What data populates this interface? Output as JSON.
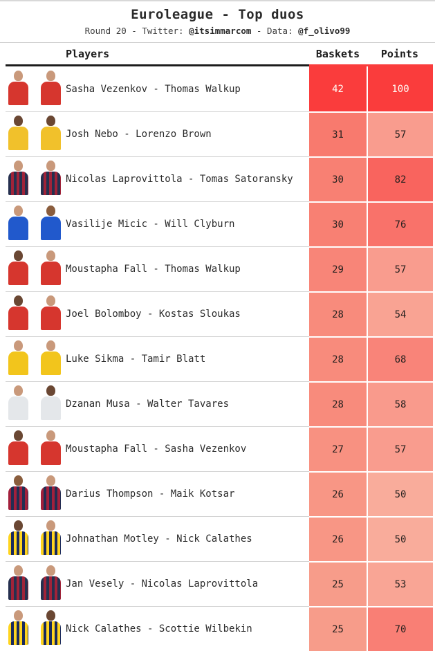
{
  "theme": {
    "accent_red": "#FA3C3C",
    "divider_gray": "#d4d4d4",
    "header_border_black": "#1c1c1c",
    "background": "#ffffff"
  },
  "header": {
    "title": "Euroleague - Top duos",
    "subtitle_prefix": "Round 20 - Twitter: ",
    "twitter_handle": "@itsimmarcom",
    "subtitle_separator": " - Data: ",
    "data_handle": "@f_olivo99"
  },
  "table": {
    "columns": [
      "Players",
      "Baskets",
      "Points"
    ],
    "rows": [
      {
        "players": "Sasha Vezenkov - Thomas Walkup",
        "baskets": 42,
        "points": 100,
        "baskets_color": "#FA3C3C",
        "points_color": "#FA3C3C",
        "value_text_color": "#FFFDF7",
        "avatars": [
          {
            "skin": "#C9997B",
            "jersey": "#D6362E"
          },
          {
            "skin": "#C9997B",
            "jersey": "#D6362E"
          }
        ]
      },
      {
        "players": "Josh Nebo - Lorenzo Brown",
        "baskets": 31,
        "points": 57,
        "baskets_color": "#F87A6E",
        "points_color": "#F99C8E",
        "value_text_color": "#26211F",
        "avatars": [
          {
            "skin": "#6A4733",
            "jersey": "#F1C12B"
          },
          {
            "skin": "#6A4733",
            "jersey": "#F1C12B"
          }
        ]
      },
      {
        "players": "Nicolas Laprovittola - Tomas Satoransky",
        "baskets": 30,
        "points": 82,
        "baskets_color": "#F88073",
        "points_color": "#F9645E",
        "value_text_color": "#26211F",
        "avatars": [
          {
            "skin": "#C9997B",
            "jersey": "#25304F",
            "jersey2": "#A02339"
          },
          {
            "skin": "#C9997B",
            "jersey": "#25304F",
            "jersey2": "#A02339"
          }
        ]
      },
      {
        "players": "Vasilije Micic - Will Clyburn",
        "baskets": 30,
        "points": 76,
        "baskets_color": "#F88073",
        "points_color": "#F9726A",
        "value_text_color": "#26211F",
        "avatars": [
          {
            "skin": "#C9997B",
            "jersey": "#2159CC"
          },
          {
            "skin": "#8A5D3D",
            "jersey": "#2159CC"
          }
        ]
      },
      {
        "players": "Moustapha Fall - Thomas Walkup",
        "baskets": 29,
        "points": 57,
        "baskets_color": "#F88578",
        "points_color": "#F99C8E",
        "value_text_color": "#26211F",
        "avatars": [
          {
            "skin": "#6A4733",
            "jersey": "#D6362E"
          },
          {
            "skin": "#C9997B",
            "jersey": "#D6362E"
          }
        ]
      },
      {
        "players": "Joel Bolomboy - Kostas Sloukas",
        "baskets": 28,
        "points": 54,
        "baskets_color": "#F88B7C",
        "points_color": "#F9A393",
        "value_text_color": "#26211F",
        "avatars": [
          {
            "skin": "#6A4733",
            "jersey": "#D6362E"
          },
          {
            "skin": "#C9997B",
            "jersey": "#D6362E"
          }
        ]
      },
      {
        "players": "Luke Sikma - Tamir Blatt",
        "baskets": 28,
        "points": 68,
        "baskets_color": "#F88B7C",
        "points_color": "#F98479",
        "value_text_color": "#26211F",
        "avatars": [
          {
            "skin": "#C9997B",
            "jersey": "#F2C51C"
          },
          {
            "skin": "#C9997B",
            "jersey": "#F2C51C"
          }
        ]
      },
      {
        "players": "Dzanan Musa - Walter Tavares",
        "baskets": 28,
        "points": 58,
        "baskets_color": "#F88B7C",
        "points_color": "#F99A8C",
        "value_text_color": "#26211F",
        "avatars": [
          {
            "skin": "#C9997B",
            "jersey": "#E4E7EA"
          },
          {
            "skin": "#6A4733",
            "jersey": "#E4E7EA"
          }
        ]
      },
      {
        "players": "Moustapha Fall - Sasha Vezenkov",
        "baskets": 27,
        "points": 57,
        "baskets_color": "#F89181",
        "points_color": "#F99C8E",
        "value_text_color": "#26211F",
        "avatars": [
          {
            "skin": "#6A4733",
            "jersey": "#D6362E"
          },
          {
            "skin": "#C9997B",
            "jersey": "#D6362E"
          }
        ]
      },
      {
        "players": "Darius Thompson - Maik Kotsar",
        "baskets": 26,
        "points": 50,
        "baskets_color": "#F89685",
        "points_color": "#F9AC9B",
        "value_text_color": "#26211F",
        "avatars": [
          {
            "skin": "#8A5D3D",
            "jersey": "#A3203C",
            "jersey2": "#232D52"
          },
          {
            "skin": "#C9997B",
            "jersey": "#A3203C",
            "jersey2": "#232D52"
          }
        ]
      },
      {
        "players": "Johnathan Motley - Nick Calathes",
        "baskets": 26,
        "points": 50,
        "baskets_color": "#F89685",
        "points_color": "#F9AC9B",
        "value_text_color": "#26211F",
        "avatars": [
          {
            "skin": "#6A4733",
            "jersey": "#FFD41F",
            "jersey2": "#1A2A5E"
          },
          {
            "skin": "#C9997B",
            "jersey": "#FFD41F",
            "jersey2": "#1A2A5E"
          }
        ]
      },
      {
        "players": "Jan Vesely - Nicolas Laprovittola",
        "baskets": 25,
        "points": 53,
        "baskets_color": "#F79C8A",
        "points_color": "#F9A595",
        "value_text_color": "#26211F",
        "avatars": [
          {
            "skin": "#C9997B",
            "jersey": "#25304F",
            "jersey2": "#A02339"
          },
          {
            "skin": "#C9997B",
            "jersey": "#25304F",
            "jersey2": "#A02339"
          }
        ]
      },
      {
        "players": "Nick Calathes - Scottie Wilbekin",
        "baskets": 25,
        "points": 70,
        "baskets_color": "#F79C8A",
        "points_color": "#F97F75",
        "value_text_color": "#26211F",
        "avatars": [
          {
            "skin": "#C9997B",
            "jersey": "#FFD41F",
            "jersey2": "#1A2A5E"
          },
          {
            "skin": "#6A4733",
            "jersey": "#FFD41F",
            "jersey2": "#1A2A5E"
          }
        ]
      }
    ]
  },
  "chart_data": {
    "type": "table",
    "title": "Euroleague - Top duos",
    "subtitle": "Round 20 - Twitter: @itsimmarcom - Data: @f_olivo99",
    "columns": [
      "Players",
      "Baskets",
      "Points"
    ],
    "duos": [
      "Sasha Vezenkov - Thomas Walkup",
      "Josh Nebo - Lorenzo Brown",
      "Nicolas Laprovittola - Tomas Satoransky",
      "Vasilije Micic - Will Clyburn",
      "Moustapha Fall - Thomas Walkup",
      "Joel Bolomboy - Kostas Sloukas",
      "Luke Sikma - Tamir Blatt",
      "Dzanan Musa - Walter Tavares",
      "Moustapha Fall - Sasha Vezenkov",
      "Darius Thompson - Maik Kotsar",
      "Johnathan Motley - Nick Calathes",
      "Jan Vesely - Nicolas Laprovittola",
      "Nick Calathes - Scottie Wilbekin"
    ],
    "series": [
      {
        "name": "Baskets",
        "values": [
          42,
          31,
          30,
          30,
          29,
          28,
          28,
          28,
          27,
          26,
          26,
          25,
          25
        ]
      },
      {
        "name": "Points",
        "values": [
          100,
          57,
          82,
          76,
          57,
          54,
          68,
          58,
          57,
          50,
          50,
          53,
          70
        ]
      }
    ],
    "heatmap": {
      "baskets_range": [
        25,
        42
      ],
      "points_range": [
        50,
        100
      ],
      "min_color": "#F9AC9B",
      "max_color": "#FA3C3C"
    }
  }
}
